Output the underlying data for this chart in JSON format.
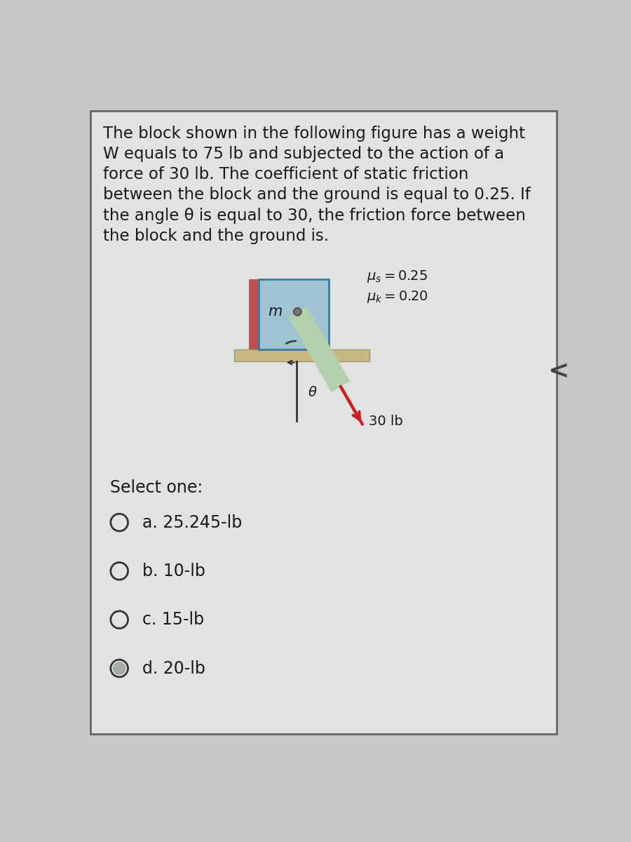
{
  "background_color": "#c8c8c8",
  "panel_color": "#e2e2e2",
  "border_color": "#666666",
  "question_text_lines": [
    "The block shown in the following figure has a weight",
    "W equals to 75 lb and subjected to the action of a",
    "force of 30 lb. The coefficient of static friction",
    "between the block and the ground is equal to 0.25. If",
    "the angle θ is equal to 30, the friction force between",
    "the block and the ground is."
  ],
  "m_label": "m",
  "force_label": "30 lb",
  "angle_label": "θ",
  "select_text": "Select one:",
  "options": [
    {
      "label": "a. 25.245-lb",
      "selected": false
    },
    {
      "label": "b. 10-lb",
      "selected": false
    },
    {
      "label": "c. 15-lb",
      "selected": false
    },
    {
      "label": "d. 20-lb",
      "selected": true
    }
  ],
  "block_color": "#9ec4d4",
  "block_border_color": "#3a7a9a",
  "block_left_color": "#c05050",
  "ground_color": "#c8b882",
  "ground_border_color": "#999970",
  "force_color": "#cc2020",
  "rope_color": "#c0d8b8",
  "text_color": "#1a1a1a",
  "question_fontsize": 16.5,
  "option_fontsize": 17,
  "select_fontsize": 17
}
